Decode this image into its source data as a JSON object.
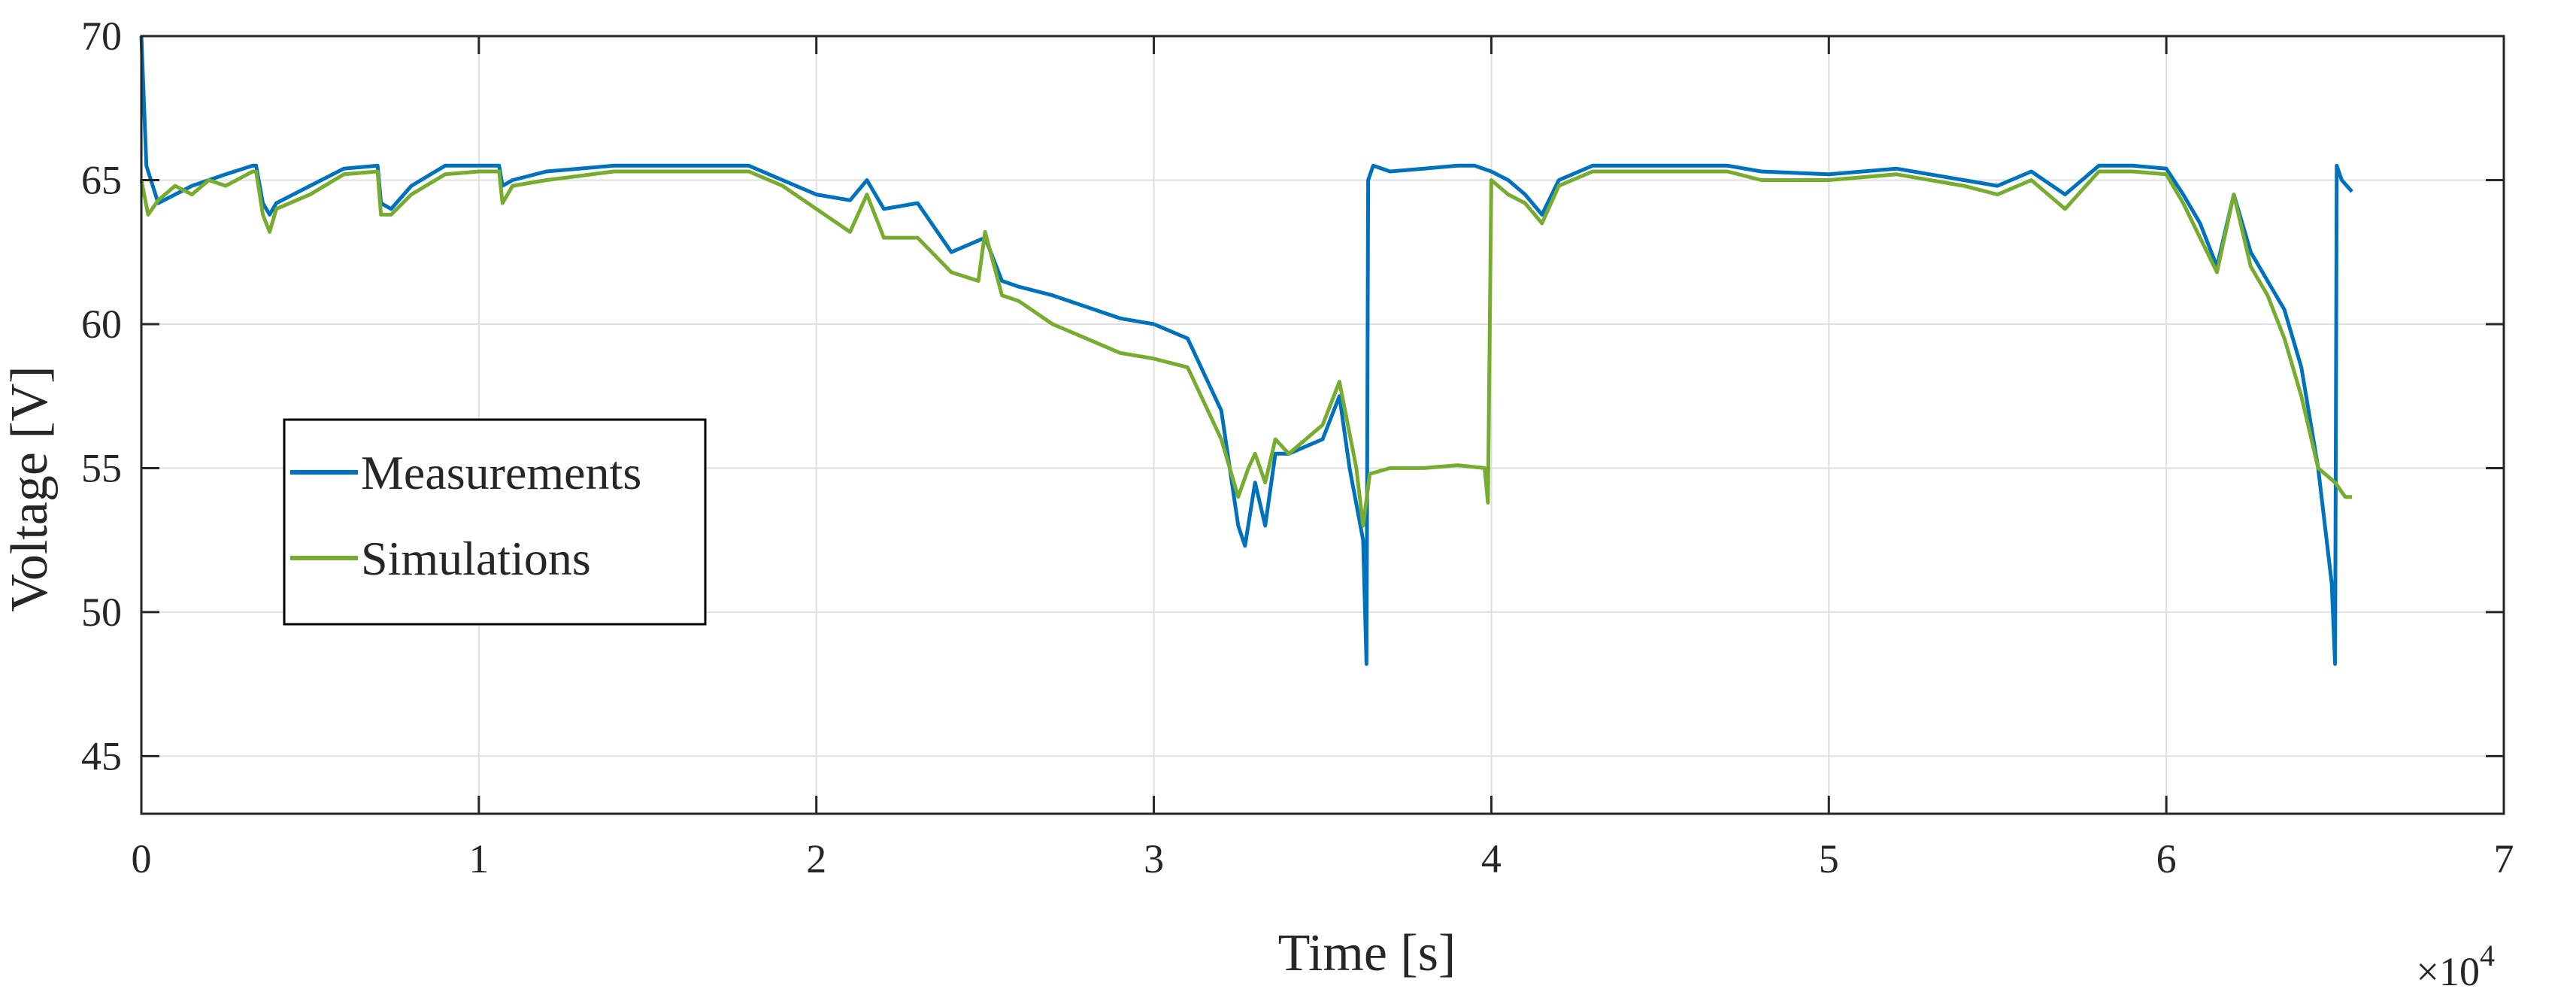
{
  "chart_data": {
    "type": "line",
    "title": "",
    "xlabel": "Time [s]",
    "ylabel": "Voltage [V]",
    "x_multiplier_label": "×10",
    "x_multiplier_exponent": "4",
    "xlim": [
      0,
      70000
    ],
    "ylim": [
      43,
      70
    ],
    "xticks": [
      0,
      10000,
      20000,
      30000,
      40000,
      50000,
      60000,
      70000
    ],
    "xtick_labels": [
      "0",
      "1",
      "2",
      "3",
      "4",
      "5",
      "6",
      "7"
    ],
    "yticks": [
      45,
      50,
      55,
      60,
      65,
      70
    ],
    "ytick_labels": [
      "45",
      "50",
      "55",
      "60",
      "65",
      "70"
    ],
    "grid": true,
    "legend_position": "middle-left",
    "series": [
      {
        "name": "Measurements",
        "color": "#0072BD",
        "points": [
          [
            0,
            70
          ],
          [
            150,
            65.5
          ],
          [
            500,
            64.2
          ],
          [
            1500,
            64.8
          ],
          [
            2500,
            65.2
          ],
          [
            3300,
            65.5
          ],
          [
            3400,
            65.5
          ],
          [
            3600,
            64.2
          ],
          [
            3800,
            63.8
          ],
          [
            4000,
            64.2
          ],
          [
            5000,
            64.8
          ],
          [
            6000,
            65.4
          ],
          [
            7000,
            65.5
          ],
          [
            7100,
            64.2
          ],
          [
            7400,
            64.0
          ],
          [
            8000,
            64.8
          ],
          [
            9000,
            65.5
          ],
          [
            10000,
            65.5
          ],
          [
            10600,
            65.5
          ],
          [
            10700,
            64.8
          ],
          [
            11000,
            65.0
          ],
          [
            12000,
            65.3
          ],
          [
            14000,
            65.5
          ],
          [
            16000,
            65.5
          ],
          [
            18000,
            65.5
          ],
          [
            19000,
            65.0
          ],
          [
            20000,
            64.5
          ],
          [
            21000,
            64.3
          ],
          [
            21500,
            65.0
          ],
          [
            22000,
            64.0
          ],
          [
            23000,
            64.2
          ],
          [
            24000,
            62.5
          ],
          [
            25000,
            63.0
          ],
          [
            25500,
            61.5
          ],
          [
            26000,
            61.3
          ],
          [
            27000,
            61.0
          ],
          [
            28000,
            60.6
          ],
          [
            29000,
            60.2
          ],
          [
            30000,
            60.0
          ],
          [
            31000,
            59.5
          ],
          [
            32000,
            57.0
          ],
          [
            32500,
            53.0
          ],
          [
            32700,
            52.3
          ],
          [
            33000,
            54.5
          ],
          [
            33300,
            53.0
          ],
          [
            33600,
            55.5
          ],
          [
            34000,
            55.5
          ],
          [
            35000,
            56.0
          ],
          [
            35500,
            57.5
          ],
          [
            35800,
            55.0
          ],
          [
            36200,
            52.5
          ],
          [
            36300,
            48.2
          ],
          [
            36350,
            65.0
          ],
          [
            36500,
            65.5
          ],
          [
            37000,
            65.3
          ],
          [
            38000,
            65.4
          ],
          [
            39000,
            65.5
          ],
          [
            39500,
            65.5
          ],
          [
            40000,
            65.3
          ],
          [
            40500,
            65.0
          ],
          [
            41000,
            64.5
          ],
          [
            41500,
            63.8
          ],
          [
            42000,
            65.0
          ],
          [
            43000,
            65.5
          ],
          [
            45000,
            65.5
          ],
          [
            47000,
            65.5
          ],
          [
            48000,
            65.3
          ],
          [
            50000,
            65.2
          ],
          [
            52000,
            65.4
          ],
          [
            54000,
            65.0
          ],
          [
            55000,
            64.8
          ],
          [
            56000,
            65.3
          ],
          [
            57000,
            64.5
          ],
          [
            58000,
            65.5
          ],
          [
            59000,
            65.5
          ],
          [
            60000,
            65.4
          ],
          [
            60500,
            64.5
          ],
          [
            61000,
            63.5
          ],
          [
            61500,
            62.0
          ],
          [
            62000,
            64.5
          ],
          [
            62500,
            62.5
          ],
          [
            63000,
            61.5
          ],
          [
            63500,
            60.5
          ],
          [
            64000,
            58.5
          ],
          [
            64500,
            55.0
          ],
          [
            64900,
            51.0
          ],
          [
            65000,
            48.2
          ],
          [
            65050,
            65.5
          ],
          [
            65200,
            65.0
          ],
          [
            65500,
            64.6
          ]
        ]
      },
      {
        "name": "Simulations",
        "color": "#77AC30",
        "points": [
          [
            0,
            65.0
          ],
          [
            200,
            63.8
          ],
          [
            500,
            64.3
          ],
          [
            1000,
            64.8
          ],
          [
            1500,
            64.5
          ],
          [
            2000,
            65.0
          ],
          [
            2500,
            64.8
          ],
          [
            3300,
            65.3
          ],
          [
            3400,
            65.3
          ],
          [
            3600,
            63.8
          ],
          [
            3800,
            63.2
          ],
          [
            4000,
            64.0
          ],
          [
            5000,
            64.5
          ],
          [
            6000,
            65.2
          ],
          [
            7000,
            65.3
          ],
          [
            7100,
            63.8
          ],
          [
            7400,
            63.8
          ],
          [
            8000,
            64.5
          ],
          [
            9000,
            65.2
          ],
          [
            10000,
            65.3
          ],
          [
            10600,
            65.3
          ],
          [
            10700,
            64.2
          ],
          [
            11000,
            64.8
          ],
          [
            12000,
            65.0
          ],
          [
            14000,
            65.3
          ],
          [
            16000,
            65.3
          ],
          [
            18000,
            65.3
          ],
          [
            19000,
            64.8
          ],
          [
            20000,
            64.0
          ],
          [
            21000,
            63.2
          ],
          [
            21500,
            64.5
          ],
          [
            22000,
            63.0
          ],
          [
            23000,
            63.0
          ],
          [
            24000,
            61.8
          ],
          [
            24800,
            61.5
          ],
          [
            25000,
            63.2
          ],
          [
            25500,
            61.0
          ],
          [
            26000,
            60.8
          ],
          [
            27000,
            60.0
          ],
          [
            28000,
            59.5
          ],
          [
            29000,
            59.0
          ],
          [
            30000,
            58.8
          ],
          [
            31000,
            58.5
          ],
          [
            32000,
            56.0
          ],
          [
            32500,
            54.0
          ],
          [
            32800,
            55.0
          ],
          [
            33000,
            55.5
          ],
          [
            33300,
            54.5
          ],
          [
            33600,
            56.0
          ],
          [
            34000,
            55.5
          ],
          [
            35000,
            56.5
          ],
          [
            35500,
            58.0
          ],
          [
            36000,
            55.0
          ],
          [
            36200,
            53.0
          ],
          [
            36400,
            54.8
          ],
          [
            37000,
            55.0
          ],
          [
            38000,
            55.0
          ],
          [
            39000,
            55.1
          ],
          [
            39800,
            55.0
          ],
          [
            39900,
            53.8
          ],
          [
            40000,
            65.0
          ],
          [
            40500,
            64.5
          ],
          [
            41000,
            64.2
          ],
          [
            41500,
            63.5
          ],
          [
            42000,
            64.8
          ],
          [
            43000,
            65.3
          ],
          [
            45000,
            65.3
          ],
          [
            47000,
            65.3
          ],
          [
            48000,
            65.0
          ],
          [
            50000,
            65.0
          ],
          [
            52000,
            65.2
          ],
          [
            54000,
            64.8
          ],
          [
            55000,
            64.5
          ],
          [
            56000,
            65.0
          ],
          [
            57000,
            64.0
          ],
          [
            58000,
            65.3
          ],
          [
            59000,
            65.3
          ],
          [
            60000,
            65.2
          ],
          [
            60500,
            64.2
          ],
          [
            61000,
            63.0
          ],
          [
            61500,
            61.8
          ],
          [
            62000,
            64.5
          ],
          [
            62500,
            62.0
          ],
          [
            63000,
            61.0
          ],
          [
            63500,
            59.5
          ],
          [
            64000,
            57.5
          ],
          [
            64500,
            55.0
          ],
          [
            65000,
            54.5
          ],
          [
            65300,
            54.0
          ],
          [
            65500,
            54.0
          ]
        ]
      }
    ]
  }
}
